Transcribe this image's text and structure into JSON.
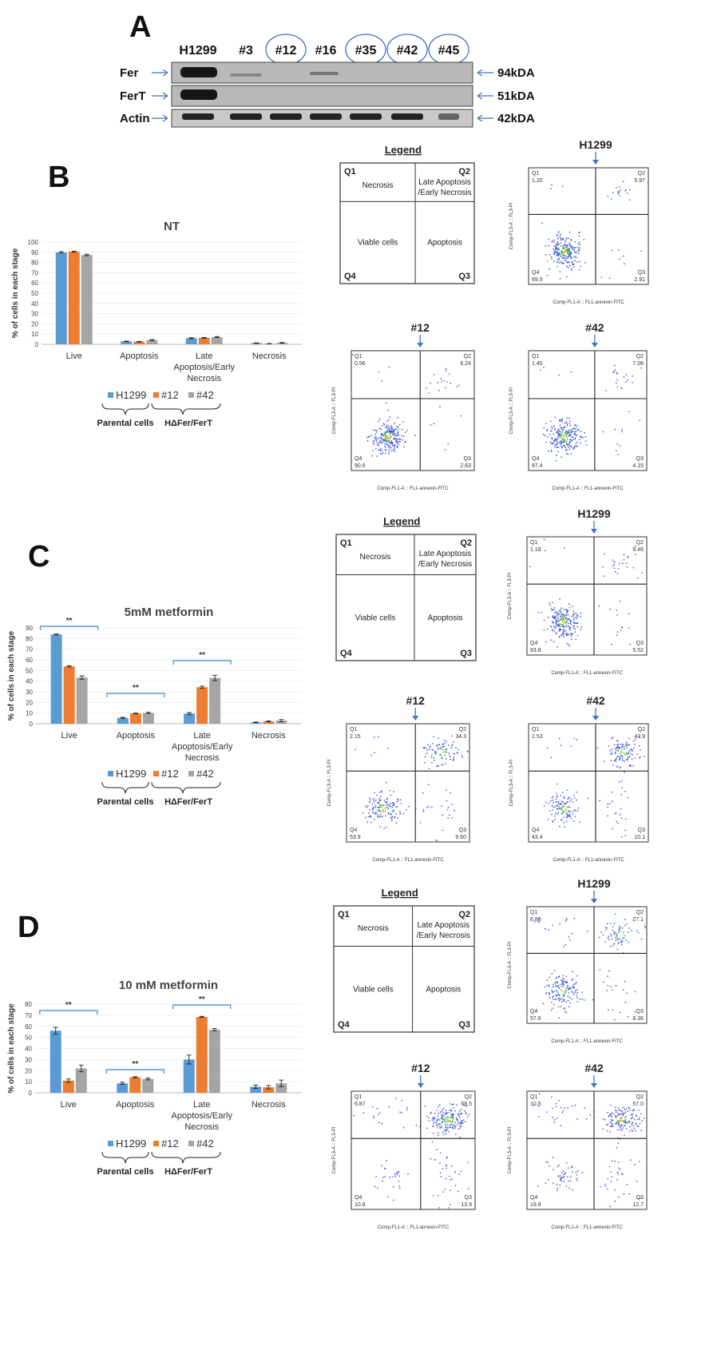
{
  "panel_a": {
    "letter": "A",
    "lanes": [
      "H1299",
      "#3",
      "#12",
      "#16",
      "#35",
      "#42",
      "#45"
    ],
    "circled_lanes": [
      "#12",
      "#35",
      "#42",
      "#45"
    ],
    "rows": [
      {
        "label": "Fer",
        "kda": "94kDA"
      },
      {
        "label": "FerT",
        "kda": "51kDA"
      },
      {
        "label": "Actin",
        "kda": "42kDA"
      }
    ]
  },
  "legend_quadrants": {
    "title": "Legend",
    "q1": "Q1",
    "q2": "Q2",
    "q3": "Q3",
    "q4": "Q4",
    "necrosis": "Necrosis",
    "late_line1": "Late Apoptosis",
    "late_line2": "/Early Necrosis",
    "viable": "Viable cells",
    "apoptosis": "Apoptosis"
  },
  "series_legend": {
    "items": [
      "H1299",
      "#12",
      "#42"
    ],
    "groups": [
      "Parental cells",
      "HΔFer/FerT"
    ]
  },
  "colors": {
    "H1299": "#5b9bd5",
    "#12": "#ed7d31",
    "#42": "#a5a5a5",
    "arrow": "#4472c4",
    "sig": "#5b9bd5"
  },
  "flow_axes": {
    "x_label": "Comp-FL1-A :: FL1-annexin-FITC",
    "y_label": "Comp-FL3-A :: FL3-PI"
  },
  "chart_data": [
    {
      "type": "bar",
      "panel": "B",
      "title": "NT",
      "ylabel": "% of cells in each stage",
      "ylim": [
        0,
        100
      ],
      "yticks": [
        0,
        10,
        20,
        30,
        40,
        50,
        60,
        70,
        80,
        90,
        100
      ],
      "categories": [
        "Live",
        "Apoptosis",
        "Late Apoptosis/Early Necrosis",
        "Necrosis"
      ],
      "series": [
        {
          "name": "H1299",
          "values": [
            89.9,
            2.9,
            5.97,
            1.2
          ],
          "errors": [
            0.8,
            0.3,
            0.4,
            0.2
          ]
        },
        {
          "name": "#12",
          "values": [
            90.6,
            2.6,
            6.24,
            0.56
          ],
          "errors": [
            0.5,
            0.3,
            0.4,
            0.2
          ]
        },
        {
          "name": "#42",
          "values": [
            87.4,
            4.15,
            7.06,
            1.4
          ],
          "errors": [
            0.7,
            0.4,
            0.5,
            0.3
          ]
        }
      ],
      "significance": []
    },
    {
      "type": "bar",
      "panel": "C",
      "title": "5mM metformin",
      "ylabel": "% of cells in each stage",
      "ylim": [
        0,
        90
      ],
      "yticks": [
        0,
        10,
        20,
        30,
        40,
        50,
        60,
        70,
        80,
        90
      ],
      "categories": [
        "Live",
        "Apoptosis",
        "Late Apoptosis/Early Necrosis",
        "Necrosis"
      ],
      "series": [
        {
          "name": "H1299",
          "values": [
            83.8,
            5.5,
            9.5,
            1.2
          ],
          "errors": [
            0.5,
            0.5,
            1.0,
            0.3
          ]
        },
        {
          "name": "#12",
          "values": [
            53.9,
            9.6,
            34.3,
            2.2
          ],
          "errors": [
            0.6,
            0.4,
            1.0,
            0.4
          ]
        },
        {
          "name": "#42",
          "values": [
            43.4,
            10.1,
            43.0,
            3.0
          ],
          "errors": [
            1.5,
            0.6,
            2.5,
            1.0
          ]
        }
      ],
      "significance": [
        {
          "label": "**",
          "category": "Live"
        },
        {
          "label": "**",
          "category": "Apoptosis"
        },
        {
          "label": "**",
          "category": "Late Apoptosis/Early Necrosis"
        }
      ]
    },
    {
      "type": "bar",
      "panel": "D",
      "title": "10 mM metformin",
      "ylabel": "% of cells in each stage",
      "ylim": [
        0,
        80
      ],
      "yticks": [
        0,
        10,
        20,
        30,
        40,
        50,
        60,
        70,
        80
      ],
      "categories": [
        "Live",
        "Apoptosis",
        "Late Apoptosis/Early Necrosis",
        "Necrosis"
      ],
      "series": [
        {
          "name": "H1299",
          "values": [
            56,
            8.5,
            30,
            5.5
          ],
          "errors": [
            3.0,
            1.0,
            4.0,
            1.5
          ]
        },
        {
          "name": "#12",
          "values": [
            11,
            14,
            68.5,
            5
          ],
          "errors": [
            1.5,
            0.5,
            0.5,
            1.5
          ]
        },
        {
          "name": "#42",
          "values": [
            22,
            12.5,
            57,
            8.5
          ],
          "errors": [
            3.0,
            0.8,
            1.0,
            3.0
          ]
        }
      ],
      "significance": [
        {
          "label": "**",
          "category": "Live"
        },
        {
          "label": "**",
          "category": "Apoptosis"
        },
        {
          "label": "**",
          "category": "Late Apoptosis/Early Necrosis"
        }
      ]
    }
  ],
  "flow_plots": [
    {
      "panel": "B",
      "title": "H1299",
      "q1": "1.20",
      "q2": "5.97",
      "q3": "2.91",
      "q4": "89.9"
    },
    {
      "panel": "B",
      "title": "#12",
      "q1": "0.56",
      "q2": "6.24",
      "q3": "2.63",
      "q4": "90.6"
    },
    {
      "panel": "B",
      "title": "#42",
      "q1": "1.40",
      "q2": "7.06",
      "q3": "4.15",
      "q4": "87.4"
    },
    {
      "panel": "C",
      "title": "H1299",
      "q1": "1.18",
      "q2": "9.46",
      "q3": "5.52",
      "q4": "83.8"
    },
    {
      "panel": "C",
      "title": "#12",
      "q1": "2.15",
      "q2": "34.3",
      "q3": "9.60",
      "q4": "53.9"
    },
    {
      "panel": "C",
      "title": "#42",
      "q1": "2.53",
      "q2": "43.9",
      "q3": "10.1",
      "q4": "43.4"
    },
    {
      "panel": "D",
      "title": "H1299",
      "q1": "6.86",
      "q2": "27.1",
      "q3": "8.36",
      "q4": "57.6"
    },
    {
      "panel": "D",
      "title": "#12",
      "q1": "6.87",
      "q2": "68.5",
      "q3": "13.9",
      "q4": "10.8"
    },
    {
      "panel": "D",
      "title": "#42",
      "q1": "10.5",
      "q2": "57.0",
      "q3": "12.7",
      "q4": "19.8"
    }
  ],
  "panel_letters": {
    "b": "B",
    "c": "C",
    "d": "D"
  }
}
